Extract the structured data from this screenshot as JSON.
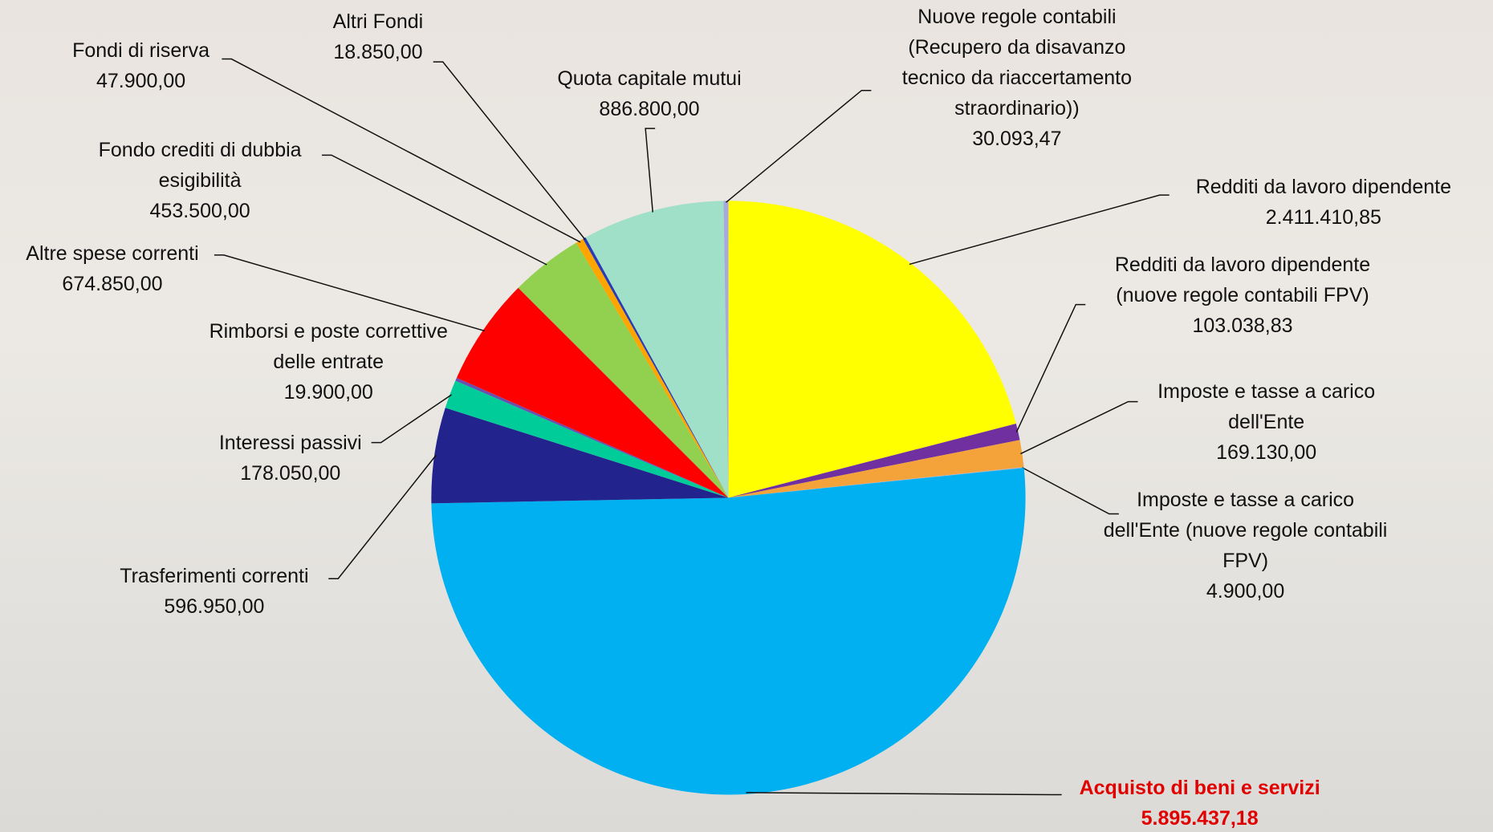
{
  "chart_data": {
    "type": "pie",
    "categories": [
      "Redditi da lavoro dipendente",
      "Redditi da lavoro dipendente (nuove regole contabili FPV)",
      "Imposte e tasse a carico dell'Ente",
      "Imposte e tasse a carico dell'Ente (nuove regole contabili FPV)",
      "Acquisto di beni e servizi",
      "Trasferimenti correnti",
      "Interessi passivi",
      "Rimborsi e poste correttive delle entrate",
      "Altre spese correnti",
      "Fondo crediti di dubbia esigibilità",
      "Fondi di riserva",
      "Altri Fondi",
      "Quota capitale mutui",
      "Nuove regole contabili (Recupero da disavanzo tecnico da riaccertamento straordinario))"
    ],
    "values": [
      2411410.85,
      103038.83,
      169130,
      4900,
      5895437.18,
      596950,
      178050,
      19900,
      674850,
      453500,
      47900,
      18850,
      886800,
      30093.47
    ],
    "value_labels": [
      "2.411.410,85",
      "103.038,83",
      "169.130,00",
      "4.900,00",
      "5.895.437,18",
      "596.950,00",
      "178.050,00",
      "19.900,00",
      "674.850,00",
      "453.500,00",
      "47.900,00",
      "18.850,00",
      "886.800,00",
      "30.093,47"
    ],
    "colors": [
      "#ffff00",
      "#7030a0",
      "#f4a23a",
      "#b0b0c8",
      "#00b0f0",
      "#23238e",
      "#00cc99",
      "#6a4fb0",
      "#ff0000",
      "#92d050",
      "#ffa500",
      "#2a3bb5",
      "#a0e0c8",
      "#a9a9e0"
    ]
  }
}
